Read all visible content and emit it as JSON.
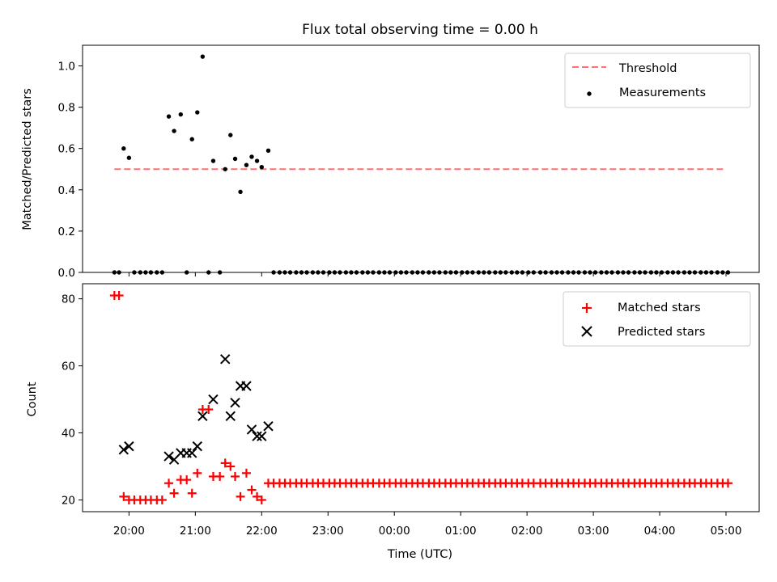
{
  "chart_data": [
    {
      "type": "scatter",
      "title": "Flux total observing time = 0.00 h",
      "xlabel": "",
      "ylabel": "Matched/Predicted stars",
      "ylim": [
        0,
        1.1
      ],
      "yticks": [
        "0.0",
        "0.2",
        "0.4",
        "0.6",
        "0.8",
        "1.0"
      ],
      "xlim_hours": [
        19.3,
        29.5
      ],
      "threshold": {
        "label": "Threshold",
        "value": 0.5,
        "x_start": 19.78,
        "x_end": 29.0,
        "color": "#ff7070"
      },
      "series": [
        {
          "name": "Measurements",
          "color": "#000000",
          "points": [
            [
              19.78,
              0.0
            ],
            [
              19.85,
              0.0
            ],
            [
              19.92,
              0.6
            ],
            [
              20.0,
              0.555
            ],
            [
              20.08,
              0.0
            ],
            [
              20.17,
              0.0
            ],
            [
              20.25,
              0.0
            ],
            [
              20.33,
              0.0
            ],
            [
              20.42,
              0.0
            ],
            [
              20.5,
              0.0
            ],
            [
              20.6,
              0.755
            ],
            [
              20.68,
              0.685
            ],
            [
              20.78,
              0.765
            ],
            [
              20.87,
              0.0
            ],
            [
              20.95,
              0.645
            ],
            [
              21.03,
              0.775
            ],
            [
              21.11,
              1.045
            ],
            [
              21.2,
              0.0
            ],
            [
              21.27,
              0.54
            ],
            [
              21.37,
              0.0
            ],
            [
              21.45,
              0.5
            ],
            [
              21.53,
              0.665
            ],
            [
              21.6,
              0.55
            ],
            [
              21.68,
              0.39
            ],
            [
              21.77,
              0.52
            ],
            [
              21.85,
              0.56
            ],
            [
              21.93,
              0.54
            ],
            [
              22.0,
              0.51
            ],
            [
              22.1,
              0.59
            ],
            [
              22.18,
              0.0
            ],
            [
              22.27,
              0.0
            ],
            [
              22.35,
              0.0
            ],
            [
              22.43,
              0.0
            ],
            [
              22.52,
              0.0
            ],
            [
              22.6,
              0.0
            ],
            [
              22.68,
              0.0
            ],
            [
              22.77,
              0.0
            ],
            [
              22.85,
              0.0
            ],
            [
              22.93,
              0.0
            ],
            [
              23.02,
              0.0
            ],
            [
              23.1,
              0.0
            ],
            [
              23.18,
              0.0
            ],
            [
              23.27,
              0.0
            ],
            [
              23.35,
              0.0
            ],
            [
              23.43,
              0.0
            ],
            [
              23.52,
              0.0
            ],
            [
              23.6,
              0.0
            ],
            [
              23.68,
              0.0
            ],
            [
              23.77,
              0.0
            ],
            [
              23.85,
              0.0
            ],
            [
              23.93,
              0.0
            ],
            [
              24.02,
              0.0
            ],
            [
              24.1,
              0.0
            ],
            [
              24.18,
              0.0
            ],
            [
              24.27,
              0.0
            ],
            [
              24.35,
              0.0
            ],
            [
              24.43,
              0.0
            ],
            [
              24.52,
              0.0
            ],
            [
              24.6,
              0.0
            ],
            [
              24.68,
              0.0
            ],
            [
              24.77,
              0.0
            ],
            [
              24.85,
              0.0
            ],
            [
              24.93,
              0.0
            ],
            [
              25.02,
              0.0
            ],
            [
              25.1,
              0.0
            ],
            [
              25.18,
              0.0
            ],
            [
              25.27,
              0.0
            ],
            [
              25.35,
              0.0
            ],
            [
              25.43,
              0.0
            ],
            [
              25.52,
              0.0
            ],
            [
              25.6,
              0.0
            ],
            [
              25.68,
              0.0
            ],
            [
              25.77,
              0.0
            ],
            [
              25.85,
              0.0
            ],
            [
              25.93,
              0.0
            ],
            [
              26.02,
              0.0
            ],
            [
              26.1,
              0.0
            ],
            [
              26.2,
              0.0
            ],
            [
              26.28,
              0.0
            ],
            [
              26.37,
              0.0
            ],
            [
              26.45,
              0.0
            ],
            [
              26.53,
              0.0
            ],
            [
              26.62,
              0.0
            ],
            [
              26.7,
              0.0
            ],
            [
              26.78,
              0.0
            ],
            [
              26.87,
              0.0
            ],
            [
              26.95,
              0.0
            ],
            [
              27.03,
              0.0
            ],
            [
              27.12,
              0.0
            ],
            [
              27.2,
              0.0
            ],
            [
              27.28,
              0.0
            ],
            [
              27.37,
              0.0
            ],
            [
              27.45,
              0.0
            ],
            [
              27.53,
              0.0
            ],
            [
              27.62,
              0.0
            ],
            [
              27.7,
              0.0
            ],
            [
              27.78,
              0.0
            ],
            [
              27.87,
              0.0
            ],
            [
              27.95,
              0.0
            ],
            [
              28.03,
              0.0
            ],
            [
              28.12,
              0.0
            ],
            [
              28.2,
              0.0
            ],
            [
              28.28,
              0.0
            ],
            [
              28.37,
              0.0
            ],
            [
              28.45,
              0.0
            ],
            [
              28.53,
              0.0
            ],
            [
              28.62,
              0.0
            ],
            [
              28.7,
              0.0
            ],
            [
              28.78,
              0.0
            ],
            [
              28.87,
              0.0
            ],
            [
              28.95,
              0.0
            ],
            [
              29.03,
              0.0
            ]
          ]
        }
      ],
      "legend": {
        "placement": "top-right",
        "entries": [
          "Threshold",
          "Measurements"
        ]
      }
    },
    {
      "type": "scatter",
      "title": "",
      "xlabel": "Time (UTC)",
      "ylabel": "Count",
      "ylim": [
        16.5,
        84.5
      ],
      "yticks": [
        "20",
        "40",
        "60",
        "80"
      ],
      "xlim_hours": [
        19.3,
        29.5
      ],
      "xticks": [
        "20:00",
        "21:00",
        "22:00",
        "23:00",
        "00:00",
        "01:00",
        "02:00",
        "03:00",
        "04:00",
        "05:00"
      ],
      "series": [
        {
          "name": "Matched stars",
          "marker": "plus",
          "color": "#ff0000",
          "points": [
            [
              19.78,
              81
            ],
            [
              19.85,
              81
            ],
            [
              19.92,
              21
            ],
            [
              20.0,
              20
            ],
            [
              20.08,
              20
            ],
            [
              20.17,
              20
            ],
            [
              20.25,
              20
            ],
            [
              20.33,
              20
            ],
            [
              20.42,
              20
            ],
            [
              20.5,
              20
            ],
            [
              20.6,
              25
            ],
            [
              20.68,
              22
            ],
            [
              20.78,
              26
            ],
            [
              20.87,
              26
            ],
            [
              20.95,
              22
            ],
            [
              21.03,
              28
            ],
            [
              21.11,
              47
            ],
            [
              21.2,
              47
            ],
            [
              21.27,
              27
            ],
            [
              21.37,
              27
            ],
            [
              21.45,
              31
            ],
            [
              21.53,
              30
            ],
            [
              21.6,
              27
            ],
            [
              21.68,
              21
            ],
            [
              21.77,
              28
            ],
            [
              21.85,
              23
            ],
            [
              21.93,
              21
            ],
            [
              22.0,
              20
            ],
            [
              22.1,
              25
            ],
            [
              22.18,
              25
            ],
            [
              22.27,
              25
            ],
            [
              22.35,
              25
            ],
            [
              22.43,
              25
            ],
            [
              22.52,
              25
            ],
            [
              22.6,
              25
            ],
            [
              22.68,
              25
            ],
            [
              22.77,
              25
            ],
            [
              22.85,
              25
            ],
            [
              22.93,
              25
            ],
            [
              23.02,
              25
            ],
            [
              23.1,
              25
            ],
            [
              23.18,
              25
            ],
            [
              23.27,
              25
            ],
            [
              23.35,
              25
            ],
            [
              23.43,
              25
            ],
            [
              23.52,
              25
            ],
            [
              23.6,
              25
            ],
            [
              23.68,
              25
            ],
            [
              23.77,
              25
            ],
            [
              23.85,
              25
            ],
            [
              23.93,
              25
            ],
            [
              24.02,
              25
            ],
            [
              24.1,
              25
            ],
            [
              24.18,
              25
            ],
            [
              24.27,
              25
            ],
            [
              24.35,
              25
            ],
            [
              24.43,
              25
            ],
            [
              24.52,
              25
            ],
            [
              24.6,
              25
            ],
            [
              24.68,
              25
            ],
            [
              24.77,
              25
            ],
            [
              24.85,
              25
            ],
            [
              24.93,
              25
            ],
            [
              25.02,
              25
            ],
            [
              25.1,
              25
            ],
            [
              25.18,
              25
            ],
            [
              25.27,
              25
            ],
            [
              25.35,
              25
            ],
            [
              25.43,
              25
            ],
            [
              25.52,
              25
            ],
            [
              25.6,
              25
            ],
            [
              25.68,
              25
            ],
            [
              25.77,
              25
            ],
            [
              25.85,
              25
            ],
            [
              25.93,
              25
            ],
            [
              26.02,
              25
            ],
            [
              26.1,
              25
            ],
            [
              26.2,
              25
            ],
            [
              26.28,
              25
            ],
            [
              26.37,
              25
            ],
            [
              26.45,
              25
            ],
            [
              26.53,
              25
            ],
            [
              26.62,
              25
            ],
            [
              26.7,
              25
            ],
            [
              26.78,
              25
            ],
            [
              26.87,
              25
            ],
            [
              26.95,
              25
            ],
            [
              27.03,
              25
            ],
            [
              27.12,
              25
            ],
            [
              27.2,
              25
            ],
            [
              27.28,
              25
            ],
            [
              27.37,
              25
            ],
            [
              27.45,
              25
            ],
            [
              27.53,
              25
            ],
            [
              27.62,
              25
            ],
            [
              27.7,
              25
            ],
            [
              27.78,
              25
            ],
            [
              27.87,
              25
            ],
            [
              27.95,
              25
            ],
            [
              28.03,
              25
            ],
            [
              28.12,
              25
            ],
            [
              28.2,
              25
            ],
            [
              28.28,
              25
            ],
            [
              28.37,
              25
            ],
            [
              28.45,
              25
            ],
            [
              28.53,
              25
            ],
            [
              28.62,
              25
            ],
            [
              28.7,
              25
            ],
            [
              28.78,
              25
            ],
            [
              28.87,
              25
            ],
            [
              28.95,
              25
            ],
            [
              29.03,
              25
            ]
          ]
        },
        {
          "name": "Predicted stars",
          "marker": "x",
          "color": "#000000",
          "points": [
            [
              19.92,
              35
            ],
            [
              20.0,
              36
            ],
            [
              20.6,
              33
            ],
            [
              20.68,
              32
            ],
            [
              20.78,
              34
            ],
            [
              20.87,
              34
            ],
            [
              20.95,
              34
            ],
            [
              21.03,
              36
            ],
            [
              21.11,
              45
            ],
            [
              21.27,
              50
            ],
            [
              21.45,
              62
            ],
            [
              21.53,
              45
            ],
            [
              21.6,
              49
            ],
            [
              21.68,
              54
            ],
            [
              21.77,
              54
            ],
            [
              21.85,
              41
            ],
            [
              21.93,
              39
            ],
            [
              22.0,
              39
            ],
            [
              22.1,
              42
            ]
          ]
        }
      ],
      "legend": {
        "placement": "top-right",
        "entries": [
          "Matched stars",
          "Predicted stars"
        ]
      }
    }
  ]
}
